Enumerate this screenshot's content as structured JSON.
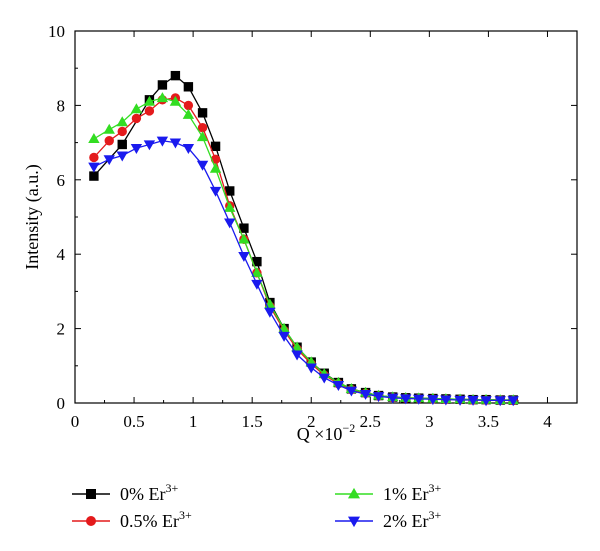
{
  "chart_data": {
    "type": "line",
    "title": "",
    "xlabel": "Q ×10",
    "xlabel_exp": "−2",
    "ylabel": "Intensity (a.u.)",
    "xlim": [
      0,
      4.25
    ],
    "ylim": [
      0,
      10
    ],
    "x_ticks": [
      0,
      0.5,
      1,
      1.5,
      2,
      2.5,
      3,
      3.5,
      4
    ],
    "x_tick_labels": [
      "0",
      "0.5",
      "1",
      "1.5",
      "2",
      "2.5",
      "3",
      "3.5",
      "4"
    ],
    "y_ticks": [
      0,
      2,
      4,
      6,
      8,
      10
    ],
    "y_tick_labels": [
      "0",
      "2",
      "4",
      "6",
      "8",
      "10"
    ],
    "grid": false,
    "legend_position": "bottom",
    "series": [
      {
        "name": "0% Er",
        "name_sup": "3+",
        "color": "#000000",
        "marker": "square",
        "x": [
          0.16,
          0.4,
          0.63,
          0.74,
          0.85,
          0.96,
          1.08,
          1.19,
          1.31,
          1.43,
          1.54,
          1.65,
          1.77,
          1.88,
          2.0,
          2.11,
          2.23,
          2.34,
          2.46,
          2.57,
          2.69,
          2.8,
          2.91,
          3.03,
          3.14,
          3.26,
          3.37,
          3.48,
          3.6,
          3.71
        ],
        "y": [
          6.1,
          6.95,
          8.15,
          8.55,
          8.8,
          8.5,
          7.8,
          6.9,
          5.7,
          4.7,
          3.8,
          2.7,
          2.0,
          1.5,
          1.1,
          0.8,
          0.55,
          0.38,
          0.28,
          0.2,
          0.16,
          0.14,
          0.13,
          0.12,
          0.11,
          0.1,
          0.09,
          0.09,
          0.08,
          0.08
        ]
      },
      {
        "name": "0.5% Er",
        "name_sup": "3+",
        "color": "#e41a1c",
        "marker": "circle",
        "x": [
          0.16,
          0.29,
          0.4,
          0.52,
          0.63,
          0.74,
          0.85,
          0.96,
          1.08,
          1.19,
          1.31,
          1.43,
          1.54,
          1.65,
          1.77,
          1.88,
          2.0,
          2.11,
          2.23,
          2.34,
          2.46,
          2.57,
          2.69,
          2.8,
          2.91,
          3.03,
          3.14,
          3.26,
          3.37,
          3.48,
          3.6,
          3.71
        ],
        "y": [
          6.6,
          7.05,
          7.3,
          7.65,
          7.85,
          8.15,
          8.2,
          8.0,
          7.4,
          6.55,
          5.3,
          4.4,
          3.5,
          2.6,
          1.95,
          1.45,
          1.05,
          0.75,
          0.52,
          0.36,
          0.26,
          0.19,
          0.15,
          0.13,
          0.12,
          0.11,
          0.1,
          0.09,
          0.08,
          0.08,
          0.08,
          0.07
        ]
      },
      {
        "name": "1% Er",
        "name_sup": "3+",
        "color": "#33dd22",
        "marker": "triangle-up",
        "x": [
          0.16,
          0.29,
          0.4,
          0.52,
          0.63,
          0.74,
          0.85,
          0.96,
          1.08,
          1.19,
          1.31,
          1.43,
          1.54,
          1.65,
          1.77,
          1.88,
          2.0,
          2.11,
          2.23,
          2.34,
          2.46,
          2.57,
          2.69,
          2.8,
          2.91,
          3.03,
          3.14,
          3.26,
          3.37,
          3.48,
          3.6,
          3.71
        ],
        "y": [
          7.1,
          7.35,
          7.55,
          7.9,
          8.1,
          8.2,
          8.1,
          7.75,
          7.15,
          6.3,
          5.25,
          4.4,
          3.5,
          2.65,
          2.0,
          1.5,
          1.1,
          0.78,
          0.55,
          0.38,
          0.28,
          0.2,
          0.16,
          0.14,
          0.13,
          0.12,
          0.11,
          0.1,
          0.09,
          0.09,
          0.08,
          0.08
        ]
      },
      {
        "name": "2% Er",
        "name_sup": "3+",
        "color": "#1a1aee",
        "marker": "triangle-down",
        "x": [
          0.16,
          0.29,
          0.4,
          0.52,
          0.63,
          0.74,
          0.85,
          0.96,
          1.08,
          1.19,
          1.31,
          1.43,
          1.54,
          1.65,
          1.77,
          1.88,
          2.0,
          2.11,
          2.23,
          2.34,
          2.46,
          2.57,
          2.69,
          2.8,
          2.91,
          3.03,
          3.14,
          3.26,
          3.37,
          3.48,
          3.6,
          3.71
        ],
        "y": [
          6.35,
          6.55,
          6.65,
          6.85,
          6.95,
          7.05,
          7.0,
          6.85,
          6.4,
          5.7,
          4.85,
          3.95,
          3.2,
          2.45,
          1.8,
          1.3,
          0.95,
          0.68,
          0.48,
          0.33,
          0.24,
          0.18,
          0.14,
          0.12,
          0.11,
          0.1,
          0.09,
          0.08,
          0.08,
          0.07,
          0.07,
          0.07
        ]
      }
    ]
  }
}
